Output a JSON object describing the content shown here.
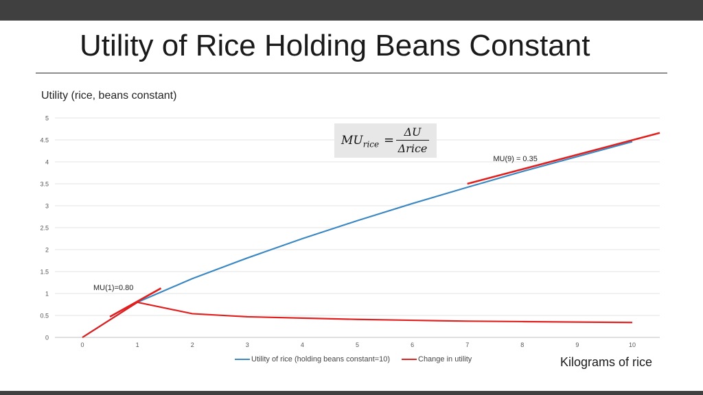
{
  "slide": {
    "title": "Utility of Rice Holding Beans Constant",
    "x_caption": "Kilograms of rice"
  },
  "formula": {
    "lhs_main": "MU",
    "lhs_sub": "rice",
    "equals": "=",
    "numerator": "ΔU",
    "denominator": "Δrice"
  },
  "chart_data": {
    "type": "line",
    "title": "Utility (rice, beans constant)",
    "xlabel": "",
    "ylabel": "",
    "x": [
      0,
      1,
      2,
      3,
      4,
      5,
      6,
      7,
      8,
      9,
      10
    ],
    "xlim": [
      0,
      10.5
    ],
    "ylim": [
      0,
      5
    ],
    "xticks": [
      "0",
      "1",
      "2",
      "3",
      "4",
      "5",
      "6",
      "7",
      "8",
      "9",
      "10"
    ],
    "yticks": [
      "0",
      "0.5",
      "1",
      "1.5",
      "2",
      "2.5",
      "3",
      "3.5",
      "4",
      "4.5",
      "5"
    ],
    "grid": true,
    "legend_position": "bottom",
    "series": [
      {
        "name": "Utility of rice (holding beans constant=10)",
        "color": "#3a87c2",
        "values": [
          0,
          0.8,
          1.34,
          1.81,
          2.25,
          2.66,
          3.05,
          3.42,
          3.78,
          4.12,
          4.46
        ]
      },
      {
        "name": "Change in utility",
        "color": "#e0201f",
        "values": [
          0,
          0.8,
          0.54,
          0.47,
          0.44,
          0.41,
          0.39,
          0.37,
          0.36,
          0.35,
          0.34
        ]
      }
    ],
    "tangents": [
      {
        "color": "#e0201f",
        "x": [
          0.5,
          1.43
        ],
        "y": [
          0.47,
          1.12
        ]
      },
      {
        "color": "#e0201f",
        "x": [
          7,
          10.5
        ],
        "y": [
          3.5,
          4.66
        ]
      }
    ],
    "annotations": [
      {
        "text": "MU(1)=0.80",
        "x": 0.2,
        "y": 1.12
      },
      {
        "text": "MU(9) = 0.35",
        "x": 7.47,
        "y": 4.07
      }
    ]
  }
}
